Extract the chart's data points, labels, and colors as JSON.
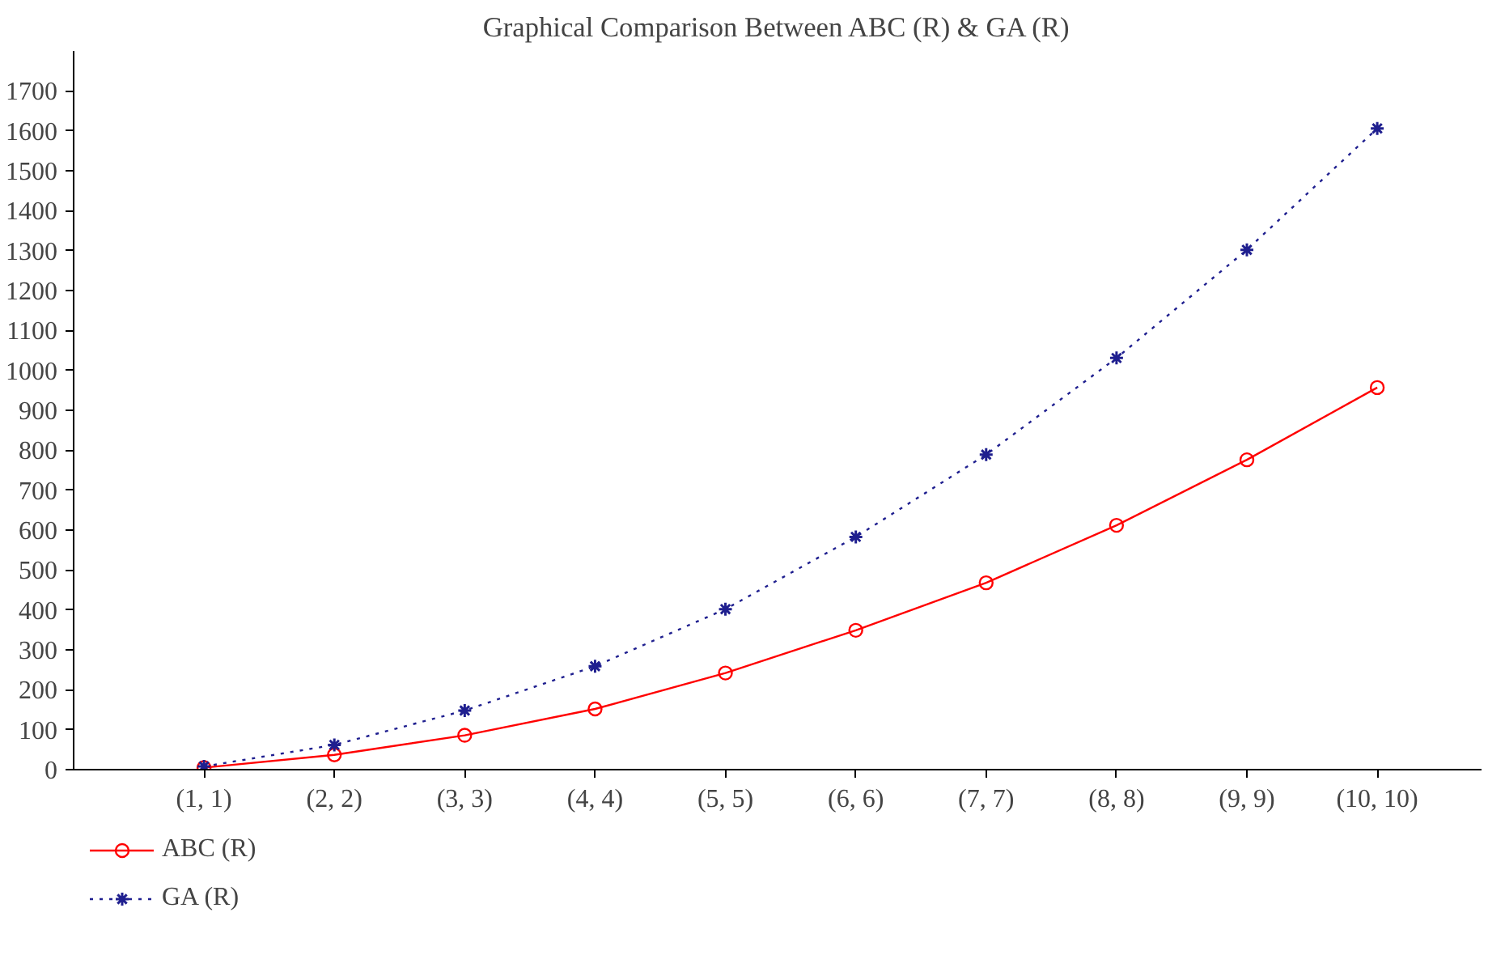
{
  "chart_data": {
    "type": "line",
    "title": "Graphical Comparison Between ABC (R) & GA (R)",
    "categories": [
      "(1, 1)",
      "(2, 2)",
      "(3, 3)",
      "(4, 4)",
      "(5, 5)",
      "(6, 6)",
      "(7, 7)",
      "(8, 8)",
      "(9, 9)",
      "(10, 10)"
    ],
    "series": [
      {
        "name": "ABC (R)",
        "color": "#ff0000",
        "marker": "circle",
        "line_style": "solid",
        "values": [
          5,
          37,
          86,
          152,
          242,
          349,
          468,
          612,
          776,
          957
        ]
      },
      {
        "name": "GA (R)",
        "color": "#1f1f8f",
        "marker": "cross",
        "line_style": "dotted",
        "values": [
          8,
          62,
          148,
          259,
          402,
          583,
          789,
          1031,
          1302,
          1606
        ]
      }
    ],
    "ylim": [
      0,
      1800
    ],
    "yticks": [
      0,
      100,
      200,
      300,
      400,
      500,
      600,
      700,
      800,
      900,
      1000,
      1100,
      1200,
      1300,
      1400,
      1500,
      1600,
      1700
    ],
    "grid": false,
    "legend": "bottom left"
  }
}
